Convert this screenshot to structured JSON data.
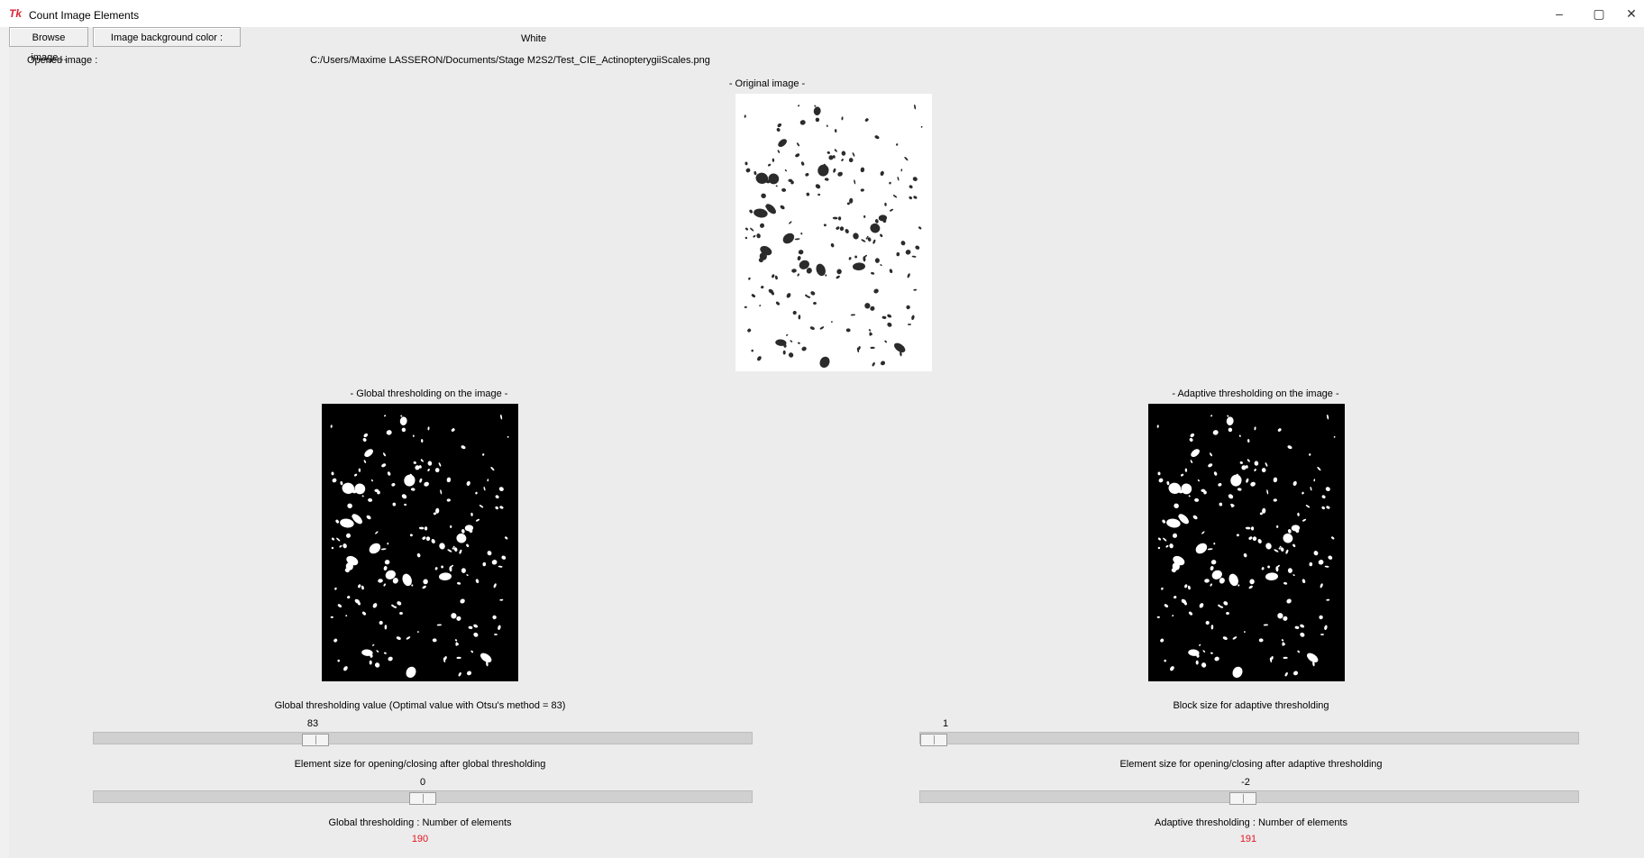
{
  "window": {
    "title": "Count Image Elements",
    "app_icon": "Tk",
    "minimize_icon": "–",
    "restore_icon": "▢",
    "close_icon": "✕"
  },
  "toolbar": {
    "browse_label": "Browse image...",
    "bg_color_label": "Image background color :",
    "bg_color_value": "White"
  },
  "opened": {
    "label": "Opened image :",
    "path": "C:/Users/Maxime LASSERON/Documents/Stage M2S2/Test_CIE_ActinopterygiiScales.png"
  },
  "original": {
    "caption": "- Original image -"
  },
  "global": {
    "caption": "- Global thresholding on the image -",
    "threshold_label": "Global thresholding value (Optimal value with Otsu's method = 83)",
    "threshold_value": "83",
    "threshold_fraction": 0.33,
    "element_label": "Element size for opening/closing after global thresholding",
    "element_value": "0",
    "element_fraction": 0.5,
    "count_label": "Global thresholding : Number of elements",
    "count_value": "190"
  },
  "adaptive": {
    "caption": "- Adaptive thresholding on the image -",
    "block_label": "Block size for adaptive thresholding",
    "block_value": "1",
    "block_fraction": 0.0,
    "element_label": "Element size for opening/closing after adaptive thresholding",
    "element_value": "-2",
    "element_fraction": 0.49,
    "count_label": "Adaptive thresholding : Number of elements",
    "count_value": "191"
  },
  "colors": {
    "count_red": "#e8141f",
    "image_dark": "#000000",
    "image_light": "#ffffff"
  }
}
